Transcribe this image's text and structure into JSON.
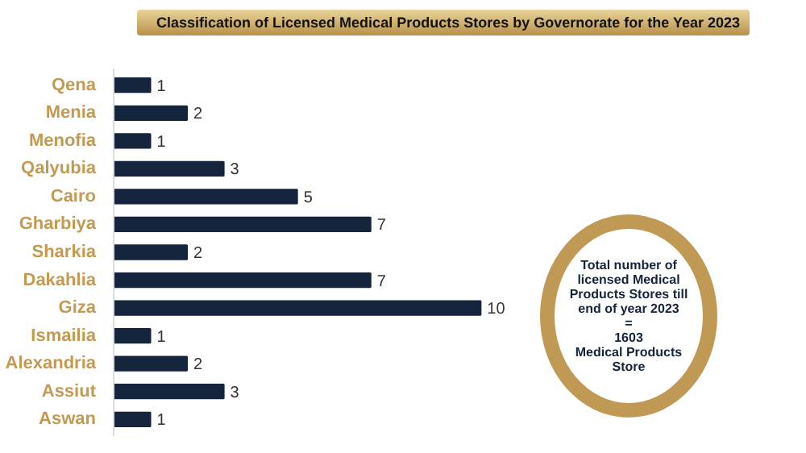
{
  "chart_data": {
    "type": "bar",
    "orientation": "horizontal",
    "title": "Classification of Licensed Medical Products Stores by Governorate for the Year 2023",
    "categories": [
      "Qena",
      "Menia",
      "Menofia",
      "Qalyubia",
      "Cairo",
      "Gharbiya",
      "Sharkia",
      "Dakahlia",
      "Giza",
      "Ismailia",
      "Alexandria",
      "Assiut",
      "Aswan"
    ],
    "values": [
      1,
      2,
      1,
      3,
      5,
      7,
      2,
      7,
      10,
      1,
      2,
      3,
      1
    ],
    "color": "#14243c",
    "data_labels": true,
    "annotations": [
      "Total number of licensed Medical Products Stores till end of year 2023\n=\n1603\nMedical Products Store"
    ]
  }
}
